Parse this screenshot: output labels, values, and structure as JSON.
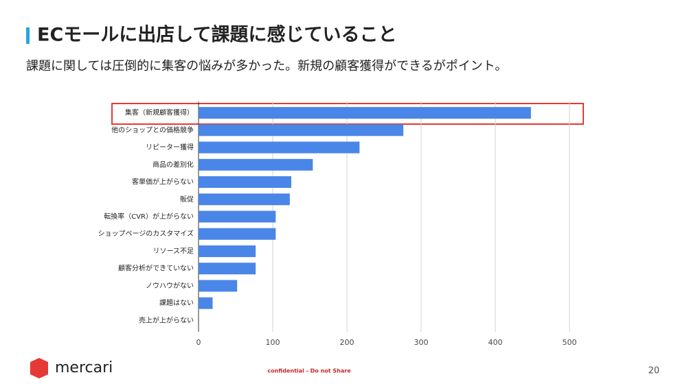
{
  "header": {
    "title": "ECモールに出店して課題に感じていること",
    "subtitle": "課題に関しては圧倒的に集客の悩みが多かった。新規の顧客獲得ができるがポイント。"
  },
  "chart_data": {
    "type": "hbar",
    "categories": [
      "集客（新規顧客獲得）",
      "他のショップとの価格競争",
      "リピーター獲得",
      "商品の差別化",
      "客単価が上がらない",
      "販促",
      "転換率（CVR）が上がらない",
      "ショップページのカスタマイズ",
      "リソース不足",
      "顧客分析ができていない",
      "ノウハウがない",
      "課題はない",
      "売上が上がらない"
    ],
    "values": [
      448,
      276,
      217,
      154,
      125,
      123,
      104,
      104,
      77,
      77,
      52,
      19,
      0
    ],
    "color": "#4a86e8",
    "xlim": [
      0,
      500
    ],
    "xticks": [
      0,
      100,
      200,
      300,
      400,
      500
    ],
    "grid": true
  },
  "footer": {
    "logo": "mercari",
    "confidential": "confidential - Do not Share",
    "page": "20"
  }
}
